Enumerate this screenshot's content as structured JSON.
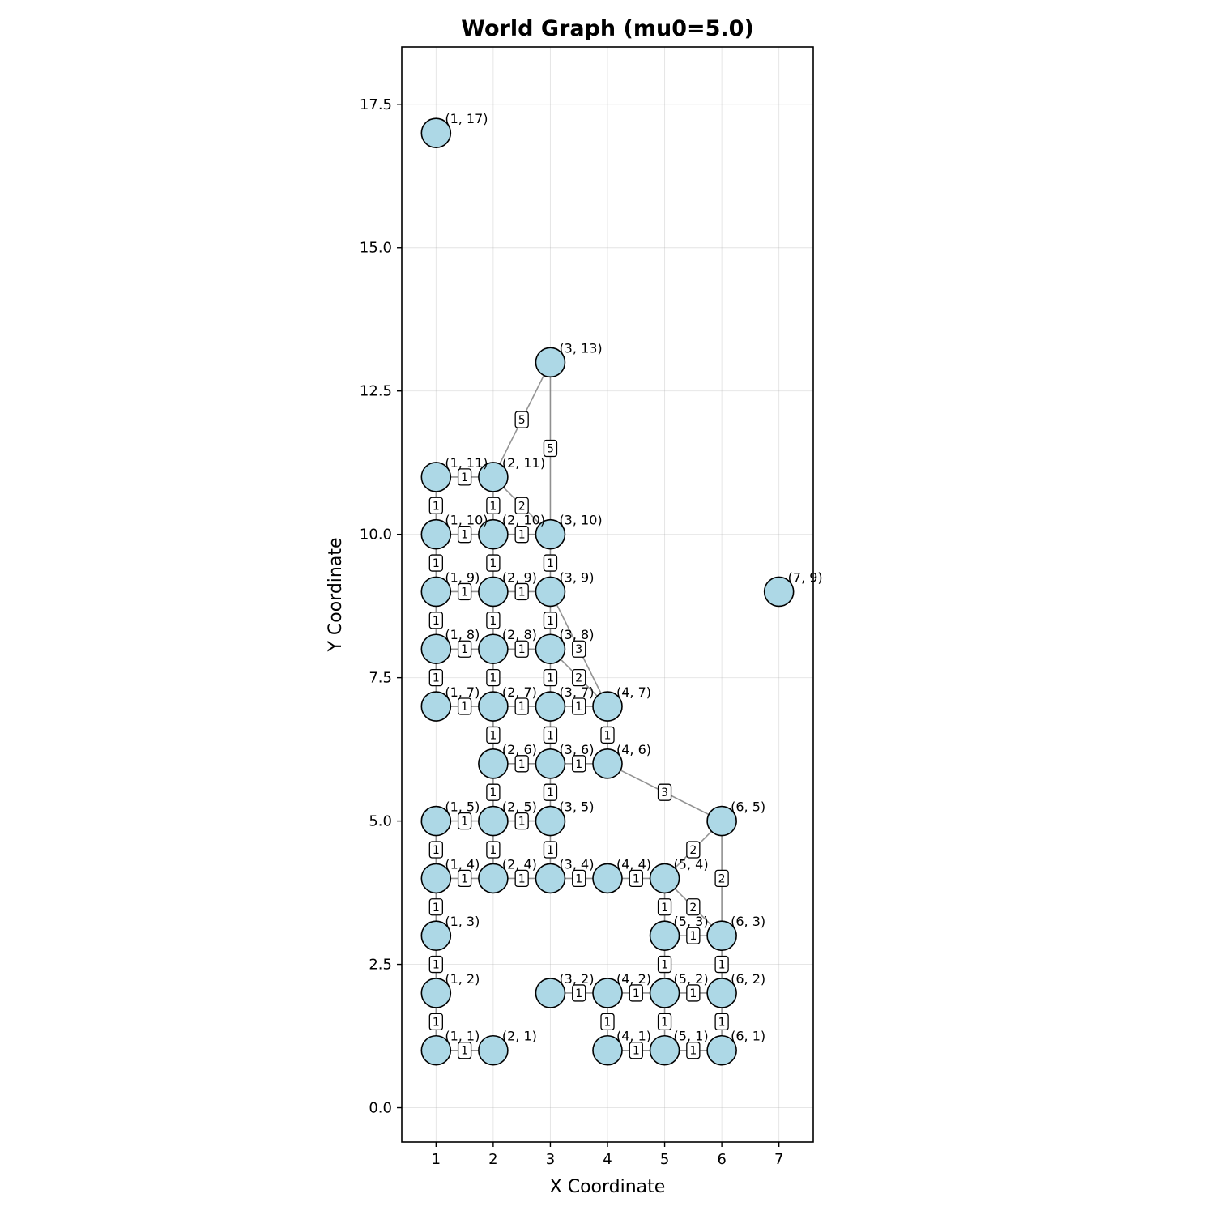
{
  "chart_data": {
    "type": "scatter",
    "title": "World Graph (mu0=5.0)",
    "xlabel": "X Coordinate",
    "ylabel": "Y Coordinate",
    "xlim": [
      0.4,
      7.6
    ],
    "ylim": [
      -0.6,
      18.5
    ],
    "x_ticks": [
      1,
      2,
      3,
      4,
      5,
      6,
      7
    ],
    "y_ticks": [
      0.0,
      2.5,
      5.0,
      7.5,
      10.0,
      12.5,
      15.0,
      17.5
    ],
    "grid": true,
    "node_color": "#add8e6",
    "edge_color": "#808080",
    "nodes": [
      [
        1,
        17
      ],
      [
        3,
        13
      ],
      [
        1,
        11
      ],
      [
        2,
        11
      ],
      [
        1,
        10
      ],
      [
        2,
        10
      ],
      [
        3,
        10
      ],
      [
        1,
        9
      ],
      [
        2,
        9
      ],
      [
        3,
        9
      ],
      [
        7,
        9
      ],
      [
        1,
        8
      ],
      [
        2,
        8
      ],
      [
        3,
        8
      ],
      [
        1,
        7
      ],
      [
        2,
        7
      ],
      [
        3,
        7
      ],
      [
        4,
        7
      ],
      [
        2,
        6
      ],
      [
        3,
        6
      ],
      [
        4,
        6
      ],
      [
        1,
        5
      ],
      [
        2,
        5
      ],
      [
        3,
        5
      ],
      [
        6,
        5
      ],
      [
        1,
        4
      ],
      [
        2,
        4
      ],
      [
        3,
        4
      ],
      [
        4,
        4
      ],
      [
        5,
        4
      ],
      [
        1,
        3
      ],
      [
        5,
        3
      ],
      [
        6,
        3
      ],
      [
        1,
        2
      ],
      [
        3,
        2
      ],
      [
        4,
        2
      ],
      [
        5,
        2
      ],
      [
        6,
        2
      ],
      [
        1,
        1
      ],
      [
        2,
        1
      ],
      [
        4,
        1
      ],
      [
        5,
        1
      ],
      [
        6,
        1
      ]
    ],
    "edges": [
      {
        "from": [
          2,
          11
        ],
        "to": [
          3,
          13
        ],
        "weight": 5
      },
      {
        "from": [
          3,
          10
        ],
        "to": [
          3,
          13
        ],
        "weight": 5
      },
      {
        "from": [
          2,
          11
        ],
        "to": [
          3,
          10
        ],
        "weight": 2
      },
      {
        "from": [
          1,
          11
        ],
        "to": [
          2,
          11
        ],
        "weight": 1
      },
      {
        "from": [
          1,
          11
        ],
        "to": [
          1,
          10
        ],
        "weight": 1
      },
      {
        "from": [
          2,
          11
        ],
        "to": [
          2,
          10
        ],
        "weight": 1
      },
      {
        "from": [
          1,
          10
        ],
        "to": [
          2,
          10
        ],
        "weight": 1
      },
      {
        "from": [
          2,
          10
        ],
        "to": [
          3,
          10
        ],
        "weight": 1
      },
      {
        "from": [
          1,
          10
        ],
        "to": [
          1,
          9
        ],
        "weight": 1
      },
      {
        "from": [
          2,
          10
        ],
        "to": [
          2,
          9
        ],
        "weight": 1
      },
      {
        "from": [
          3,
          10
        ],
        "to": [
          3,
          9
        ],
        "weight": 1
      },
      {
        "from": [
          1,
          9
        ],
        "to": [
          2,
          9
        ],
        "weight": 1
      },
      {
        "from": [
          2,
          9
        ],
        "to": [
          3,
          9
        ],
        "weight": 1
      },
      {
        "from": [
          1,
          9
        ],
        "to": [
          1,
          8
        ],
        "weight": 1
      },
      {
        "from": [
          2,
          9
        ],
        "to": [
          2,
          8
        ],
        "weight": 1
      },
      {
        "from": [
          3,
          9
        ],
        "to": [
          3,
          8
        ],
        "weight": 1
      },
      {
        "from": [
          3,
          9
        ],
        "to": [
          4,
          7
        ],
        "weight": 3
      },
      {
        "from": [
          1,
          8
        ],
        "to": [
          2,
          8
        ],
        "weight": 1
      },
      {
        "from": [
          2,
          8
        ],
        "to": [
          3,
          8
        ],
        "weight": 1
      },
      {
        "from": [
          3,
          8
        ],
        "to": [
          4,
          7
        ],
        "weight": 2
      },
      {
        "from": [
          1,
          8
        ],
        "to": [
          1,
          7
        ],
        "weight": 1
      },
      {
        "from": [
          2,
          8
        ],
        "to": [
          2,
          7
        ],
        "weight": 1
      },
      {
        "from": [
          3,
          8
        ],
        "to": [
          3,
          7
        ],
        "weight": 1
      },
      {
        "from": [
          1,
          7
        ],
        "to": [
          2,
          7
        ],
        "weight": 1
      },
      {
        "from": [
          2,
          7
        ],
        "to": [
          3,
          7
        ],
        "weight": 1
      },
      {
        "from": [
          3,
          7
        ],
        "to": [
          4,
          7
        ],
        "weight": 1
      },
      {
        "from": [
          2,
          7
        ],
        "to": [
          2,
          6
        ],
        "weight": 1
      },
      {
        "from": [
          3,
          7
        ],
        "to": [
          3,
          6
        ],
        "weight": 1
      },
      {
        "from": [
          4,
          7
        ],
        "to": [
          4,
          6
        ],
        "weight": 1
      },
      {
        "from": [
          2,
          6
        ],
        "to": [
          3,
          6
        ],
        "weight": 1
      },
      {
        "from": [
          3,
          6
        ],
        "to": [
          4,
          6
        ],
        "weight": 1
      },
      {
        "from": [
          4,
          6
        ],
        "to": [
          6,
          5
        ],
        "weight": 3
      },
      {
        "from": [
          2,
          6
        ],
        "to": [
          2,
          5
        ],
        "weight": 1
      },
      {
        "from": [
          3,
          6
        ],
        "to": [
          3,
          5
        ],
        "weight": 1
      },
      {
        "from": [
          1,
          5
        ],
        "to": [
          2,
          5
        ],
        "weight": 1
      },
      {
        "from": [
          2,
          5
        ],
        "to": [
          3,
          5
        ],
        "weight": 1
      },
      {
        "from": [
          1,
          5
        ],
        "to": [
          1,
          4
        ],
        "weight": 1
      },
      {
        "from": [
          2,
          5
        ],
        "to": [
          2,
          4
        ],
        "weight": 1
      },
      {
        "from": [
          3,
          5
        ],
        "to": [
          3,
          4
        ],
        "weight": 1
      },
      {
        "from": [
          6,
          5
        ],
        "to": [
          5,
          4
        ],
        "weight": 2
      },
      {
        "from": [
          6,
          5
        ],
        "to": [
          6,
          3
        ],
        "weight": 2
      },
      {
        "from": [
          1,
          4
        ],
        "to": [
          2,
          4
        ],
        "weight": 1
      },
      {
        "from": [
          2,
          4
        ],
        "to": [
          3,
          4
        ],
        "weight": 1
      },
      {
        "from": [
          3,
          4
        ],
        "to": [
          4,
          4
        ],
        "weight": 1
      },
      {
        "from": [
          4,
          4
        ],
        "to": [
          5,
          4
        ],
        "weight": 1
      },
      {
        "from": [
          1,
          4
        ],
        "to": [
          1,
          3
        ],
        "weight": 1
      },
      {
        "from": [
          5,
          4
        ],
        "to": [
          5,
          3
        ],
        "weight": 1
      },
      {
        "from": [
          5,
          4
        ],
        "to": [
          6,
          3
        ],
        "weight": 2
      },
      {
        "from": [
          5,
          3
        ],
        "to": [
          6,
          3
        ],
        "weight": 1
      },
      {
        "from": [
          1,
          3
        ],
        "to": [
          1,
          2
        ],
        "weight": 1
      },
      {
        "from": [
          5,
          3
        ],
        "to": [
          5,
          2
        ],
        "weight": 1
      },
      {
        "from": [
          6,
          3
        ],
        "to": [
          6,
          2
        ],
        "weight": 1
      },
      {
        "from": [
          3,
          2
        ],
        "to": [
          4,
          2
        ],
        "weight": 1
      },
      {
        "from": [
          4,
          2
        ],
        "to": [
          5,
          2
        ],
        "weight": 1
      },
      {
        "from": [
          5,
          2
        ],
        "to": [
          6,
          2
        ],
        "weight": 1
      },
      {
        "from": [
          1,
          2
        ],
        "to": [
          1,
          1
        ],
        "weight": 1
      },
      {
        "from": [
          4,
          2
        ],
        "to": [
          4,
          1
        ],
        "weight": 1
      },
      {
        "from": [
          5,
          2
        ],
        "to": [
          5,
          1
        ],
        "weight": 1
      },
      {
        "from": [
          6,
          2
        ],
        "to": [
          6,
          1
        ],
        "weight": 1
      },
      {
        "from": [
          1,
          1
        ],
        "to": [
          2,
          1
        ],
        "weight": 1
      },
      {
        "from": [
          4,
          1
        ],
        "to": [
          5,
          1
        ],
        "weight": 1
      },
      {
        "from": [
          5,
          1
        ],
        "to": [
          6,
          1
        ],
        "weight": 1
      }
    ]
  }
}
